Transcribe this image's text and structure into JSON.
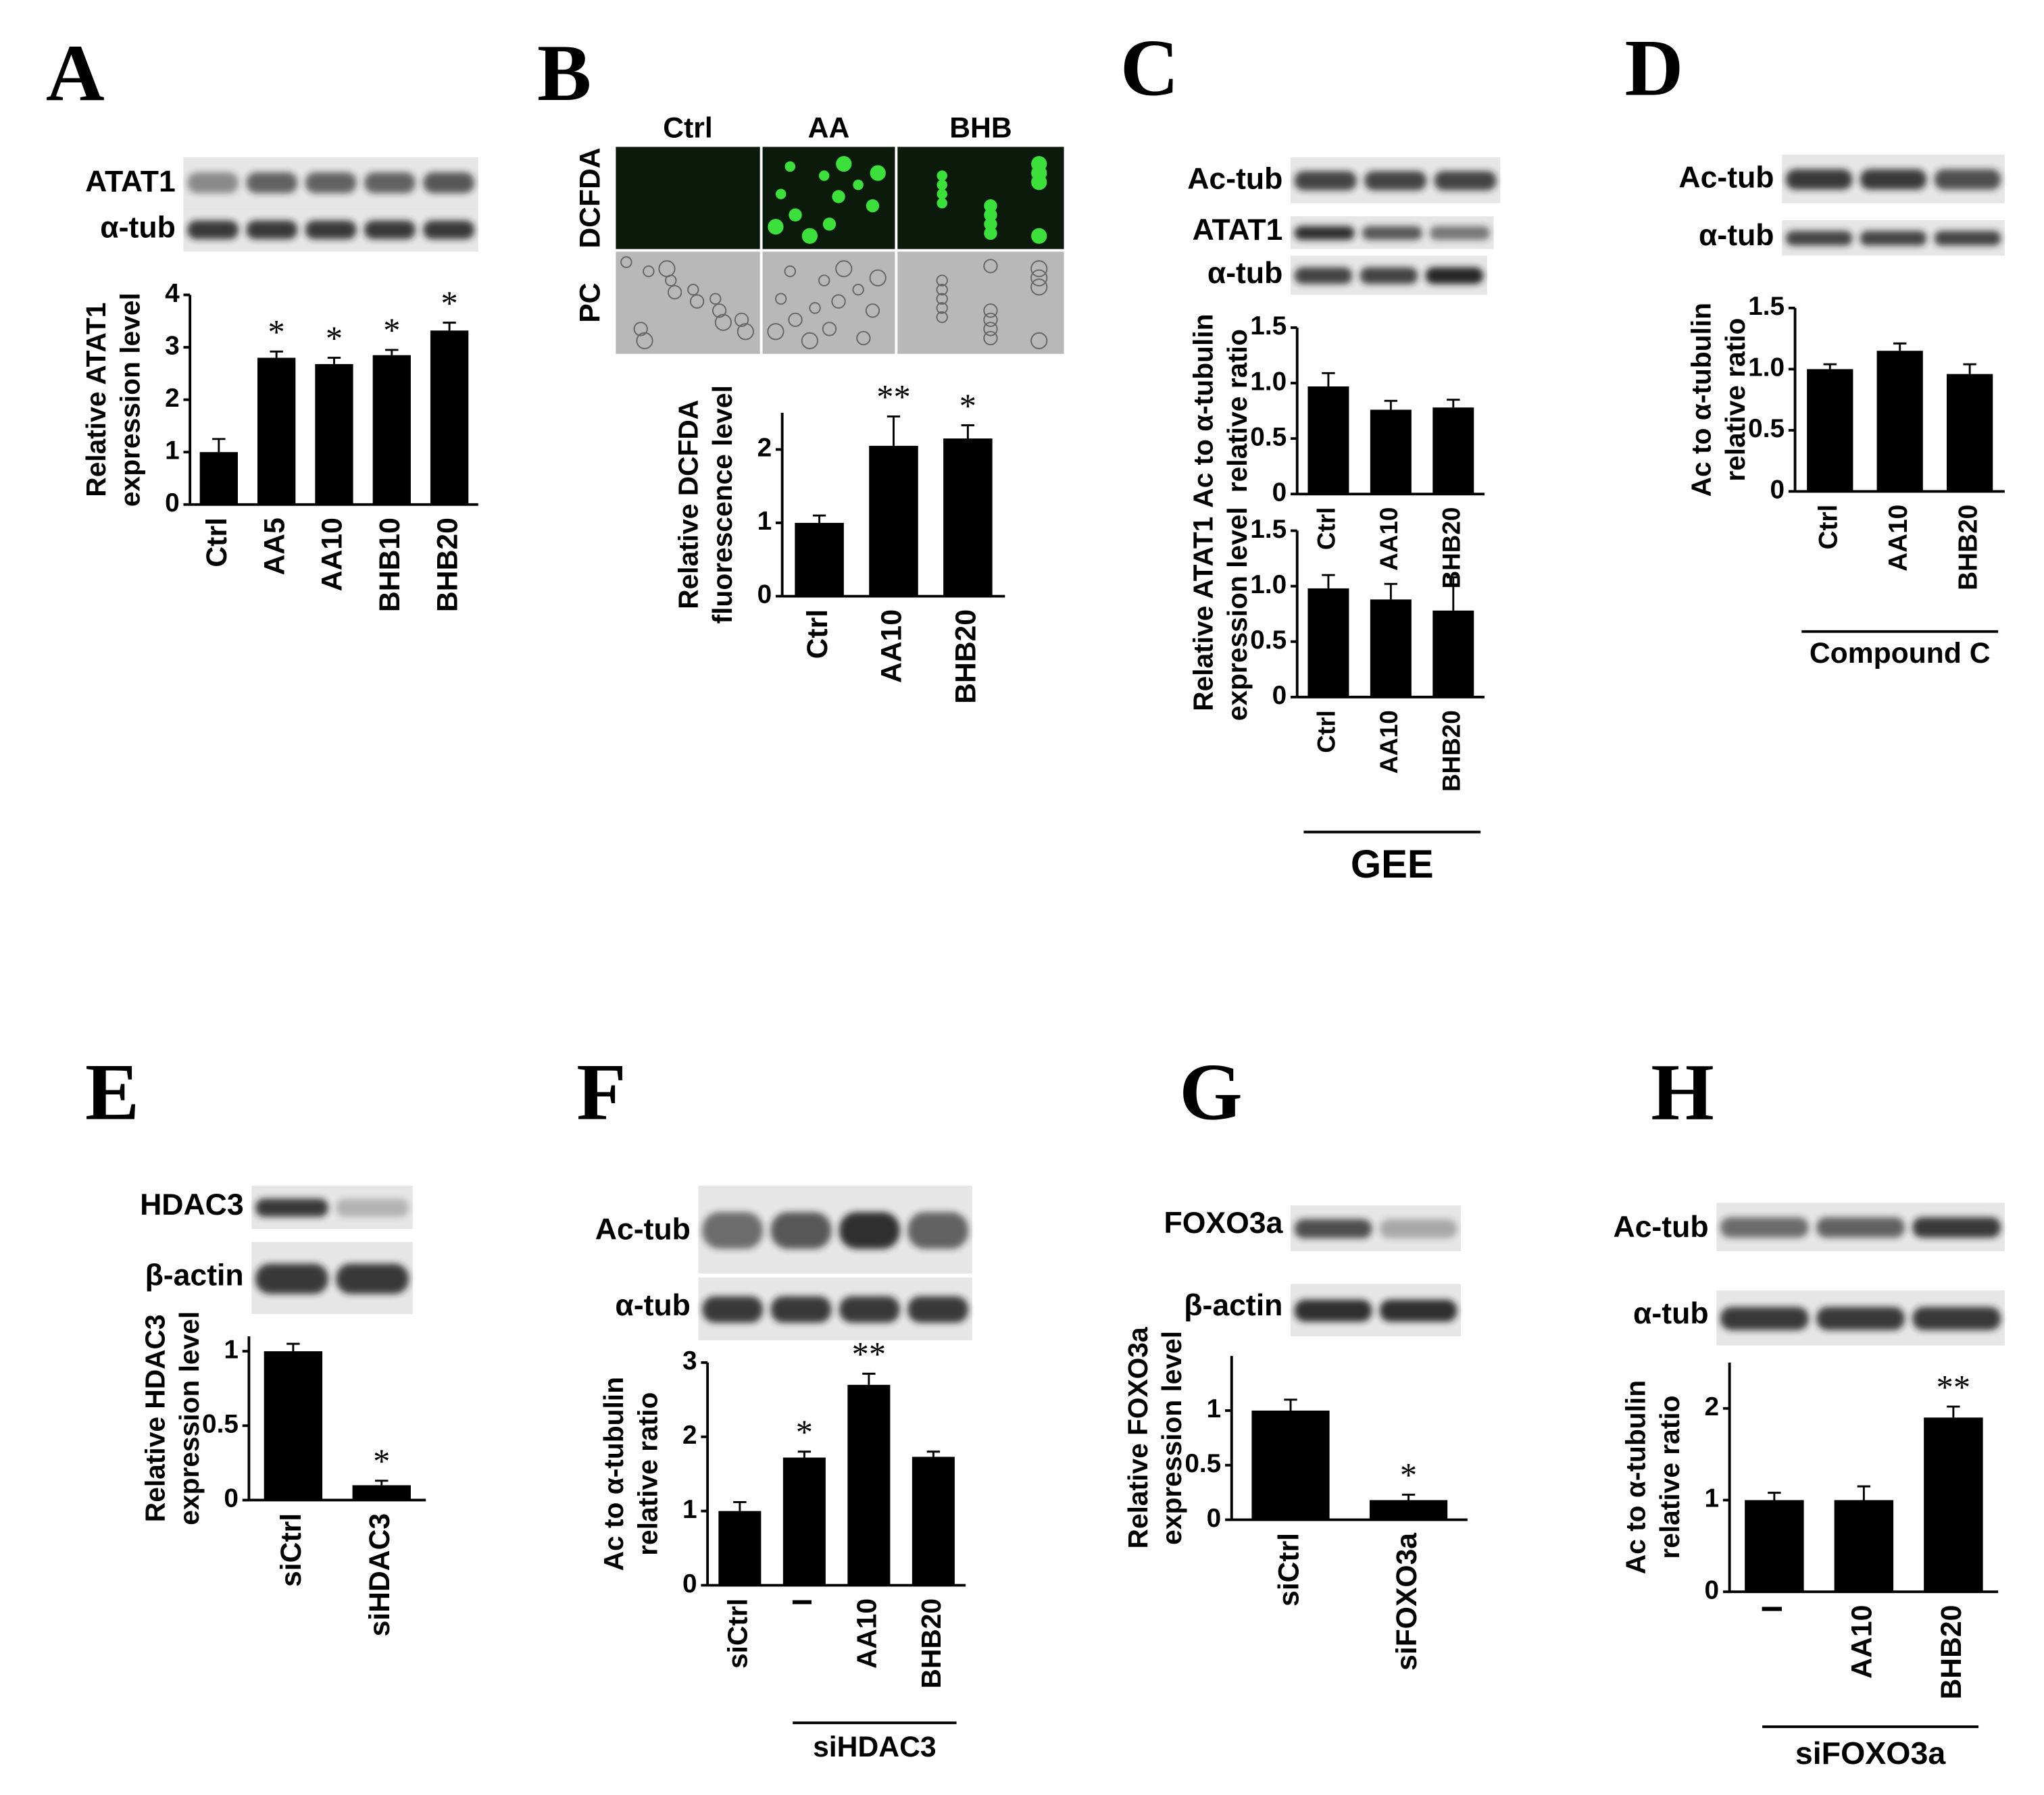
{
  "chart_data": [
    {
      "type": "bar",
      "panel": "A",
      "blot_labels": [
        "ATAT1",
        "α-tub"
      ],
      "ylabel": [
        "Relative ATAT1",
        "expression level"
      ],
      "categories": [
        "Ctrl",
        "AA5",
        "AA10",
        "BHB10",
        "BHB20"
      ],
      "values": [
        1.0,
        2.8,
        2.68,
        2.85,
        3.32
      ],
      "errors": [
        0.25,
        0.12,
        0.12,
        0.1,
        0.15
      ],
      "annotations": [
        null,
        "*",
        "*",
        "*",
        "*"
      ],
      "ylim": [
        0,
        4
      ],
      "yticks": [
        0,
        1,
        2,
        3,
        4
      ],
      "color": "#000000"
    },
    {
      "type": "bar",
      "panel": "B",
      "image_labels": {
        "columns": [
          "Ctrl",
          "AA",
          "BHB"
        ],
        "rows": [
          "DCFDA",
          "PC"
        ]
      },
      "ylabel": [
        "Relative DCFDA",
        "fluorescence level"
      ],
      "categories": [
        "Ctrl",
        "AA10",
        "BHB20"
      ],
      "values": [
        1.0,
        2.05,
        2.15
      ],
      "errors": [
        0.1,
        0.4,
        0.18
      ],
      "annotations": [
        null,
        "**",
        "*"
      ],
      "ylim": [
        0,
        2.5
      ],
      "yticks": [
        0,
        1,
        2
      ],
      "color": "#000000"
    },
    {
      "type": "bar",
      "panel": "C",
      "blot_labels": [
        "Ac-tub",
        "ATAT1",
        "α-tub"
      ],
      "ylabel": [
        "Ac to α-tubulin",
        "relative ratio"
      ],
      "categories": [
        "Ctrl",
        "AA10",
        "BHB20"
      ],
      "values": [
        0.97,
        0.76,
        0.78
      ],
      "errors": [
        0.12,
        0.08,
        0.07
      ],
      "annotations": [
        null,
        null,
        null
      ],
      "ylim": [
        0,
        1.5
      ],
      "yticks": [
        0,
        0.5,
        {
          "value": 1,
          "label": "1.0"
        },
        1.5
      ],
      "color": "#000000"
    },
    {
      "type": "bar",
      "ylabel": [
        "Relative ATAT1",
        "expression level"
      ],
      "group_label": "GEE",
      "categories": [
        "Ctrl",
        "AA10",
        "BHB20"
      ],
      "values": [
        0.98,
        0.88,
        0.78
      ],
      "errors": [
        0.12,
        0.14,
        0.3
      ],
      "annotations": [
        null,
        null,
        null
      ],
      "ylim": [
        0,
        1.5
      ],
      "yticks": [
        0,
        0.5,
        {
          "value": 1,
          "label": "1.0"
        },
        1.5
      ],
      "color": "#000000"
    },
    {
      "type": "bar",
      "panel": "D",
      "blot_labels": [
        "Ac-tub",
        "α-tub"
      ],
      "ylabel": [
        "Ac to α-tubulin",
        "relative ratio"
      ],
      "group_label": "Compound C",
      "categories": [
        "Ctrl",
        "AA10",
        "BHB20"
      ],
      "values": [
        1.0,
        1.15,
        0.96
      ],
      "errors": [
        0.04,
        0.06,
        0.08
      ],
      "annotations": [
        null,
        null,
        null
      ],
      "ylim": [
        0,
        1.5
      ],
      "yticks": [
        0,
        0.5,
        {
          "value": 1,
          "label": "1.0"
        },
        1.5
      ],
      "color": "#000000"
    },
    {
      "type": "bar",
      "panel": "E",
      "blot_labels": [
        "HDAC3",
        "β-actin"
      ],
      "ylabel": [
        "Relative HDAC3",
        "expression level"
      ],
      "categories": [
        "siCtrl",
        "siHDAC3"
      ],
      "values": [
        1.0,
        0.1
      ],
      "errors": [
        0.05,
        0.03
      ],
      "annotations": [
        null,
        "*"
      ],
      "ylim": [
        0,
        1.1
      ],
      "yticks": [
        0,
        0.5,
        1
      ],
      "color": "#000000"
    },
    {
      "type": "bar",
      "panel": "F",
      "blot_labels": [
        "Ac-tub",
        "α-tub"
      ],
      "ylabel": [
        "Ac to α-tubulin",
        "relative ratio"
      ],
      "group_label": "siHDAC3",
      "categories": [
        "siCtrl",
        "I",
        "AA10",
        "BHB20"
      ],
      "values": [
        1.0,
        1.72,
        2.7,
        1.73
      ],
      "errors": [
        0.12,
        0.08,
        0.15,
        0.07
      ],
      "annotations": [
        null,
        "*",
        "**",
        null
      ],
      "ylim": [
        0,
        3
      ],
      "yticks": [
        0,
        1,
        2,
        3
      ],
      "color": "#000000"
    },
    {
      "type": "bar",
      "panel": "G",
      "blot_labels": [
        "FOXO3a",
        "β-actin"
      ],
      "ylabel": [
        "Relative FOXO3a",
        "expression level"
      ],
      "categories": [
        "siCtrl",
        "siFOXO3a"
      ],
      "values": [
        1.0,
        0.18
      ],
      "errors": [
        0.1,
        0.05
      ],
      "annotations": [
        null,
        "*"
      ],
      "ylim": [
        0,
        1.5
      ],
      "yticks": [
        0,
        0.5,
        1
      ],
      "color": "#000000"
    },
    {
      "type": "bar",
      "panel": "H",
      "blot_labels": [
        "Ac-tub",
        "α-tub"
      ],
      "ylabel": [
        "Ac to α-tubulin",
        "relative ratio"
      ],
      "group_label": "siFOXO3a",
      "categories": [
        "I",
        "AA10",
        "BHB20"
      ],
      "values": [
        1.0,
        1.0,
        1.9
      ],
      "errors": [
        0.08,
        0.15,
        0.12
      ],
      "annotations": [
        null,
        null,
        "**"
      ],
      "ylim": [
        0,
        2.5
      ],
      "yticks": [
        0,
        1,
        2
      ],
      "color": "#000000"
    }
  ]
}
